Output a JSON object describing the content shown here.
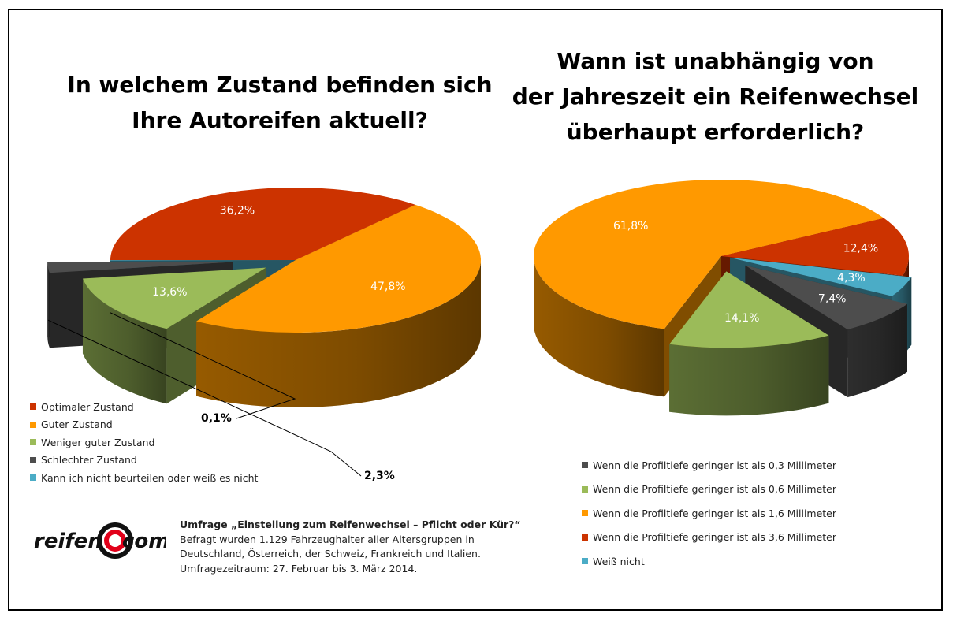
{
  "chart_data": [
    {
      "type": "pie",
      "title": "In welchem Zustand befinden sich Ihre Autoreifen aktuell?",
      "title_lines": [
        "In welchem Zustand befinden sich",
        "Ihre Autoreifen aktuell?"
      ],
      "series": [
        {
          "name": "Optimaler Zustand",
          "value": 36.2,
          "label": "36,2%",
          "color": "#cc3300"
        },
        {
          "name": "Guter Zustand",
          "value": 47.8,
          "label": "47,8%",
          "color": "#ff9900"
        },
        {
          "name": "Weniger guter Zustand",
          "value": 13.6,
          "label": "13,6%",
          "color": "#9bbb59"
        },
        {
          "name": "Schlechter Zustand",
          "value": 2.3,
          "label": "2,3%",
          "color": "#4d4d4d"
        },
        {
          "name": "Kann ich nicht beurteilen oder weiß es nicht",
          "value": 0.1,
          "label": "0,1%",
          "color": "#4bacc6"
        }
      ],
      "legend_position": "bottom-left"
    },
    {
      "type": "pie",
      "title": "Wann ist unabhängig von der Jahreszeit ein Reifenwechsel überhaupt erforderlich?",
      "title_lines": [
        "Wann ist unabhängig von",
        "der Jahreszeit ein Reifenwechsel",
        "überhaupt erforderlich?"
      ],
      "series": [
        {
          "name": "Wenn die Profiltiefe geringer ist als 0,3 Millimeter",
          "value": 7.4,
          "label": "7,4%",
          "color": "#4d4d4d"
        },
        {
          "name": "Wenn die Profiltiefe geringer ist als 0,6 Millimeter",
          "value": 14.1,
          "label": "14,1%",
          "color": "#9bbb59"
        },
        {
          "name": "Wenn die Profiltiefe geringer ist als 1,6 Millimeter",
          "value": 61.8,
          "label": "61,8%",
          "color": "#ff9900"
        },
        {
          "name": "Wenn die Profiltiefe geringer ist als 3,6 Millimeter",
          "value": 12.4,
          "label": "12,4%",
          "color": "#cc3300"
        },
        {
          "name": "Weiß nicht",
          "value": 4.3,
          "label": "4,3%",
          "color": "#4bacc6"
        }
      ],
      "legend_position": "bottom"
    }
  ],
  "logo": {
    "left": "reifen",
    "right": "com"
  },
  "survey": {
    "heading": "Umfrage „Einstellung zum Reifenwechsel – Pflicht oder Kür?“",
    "lines": [
      "Befragt wurden 1.129 Fahrzeughalter aller Altersgruppen in",
      "Deutschland, Österreich, der Schweiz, Frankreich und Italien.",
      "Umfragezeitraum: 27. Februar bis 3. März 2014."
    ]
  }
}
